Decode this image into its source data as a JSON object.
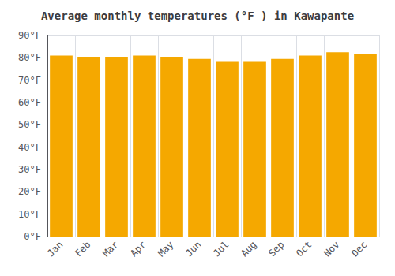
{
  "chart_data": {
    "type": "bar",
    "title": "Average monthly temperatures (°F ) in Kawapante",
    "categories": [
      "Jan",
      "Feb",
      "Mar",
      "Apr",
      "May",
      "Jun",
      "Jul",
      "Aug",
      "Sep",
      "Oct",
      "Nov",
      "Dec"
    ],
    "values": [
      81,
      80.5,
      80.5,
      81,
      80.5,
      79.5,
      78.5,
      78.5,
      79.5,
      81,
      82.5,
      81.5
    ],
    "color": "#F5A800",
    "ylim": [
      0,
      90
    ],
    "yticks": [
      {
        "value": 0,
        "label": "0°F"
      },
      {
        "value": 10,
        "label": "10°F"
      },
      {
        "value": 20,
        "label": "20°F"
      },
      {
        "value": 30,
        "label": "30°F"
      },
      {
        "value": 40,
        "label": "40°F"
      },
      {
        "value": 50,
        "label": "50°F"
      },
      {
        "value": 60,
        "label": "60°F"
      },
      {
        "value": 70,
        "label": "70°F"
      },
      {
        "value": 80,
        "label": "80°F"
      },
      {
        "value": 90,
        "label": "90°F"
      }
    ],
    "grid": true
  }
}
